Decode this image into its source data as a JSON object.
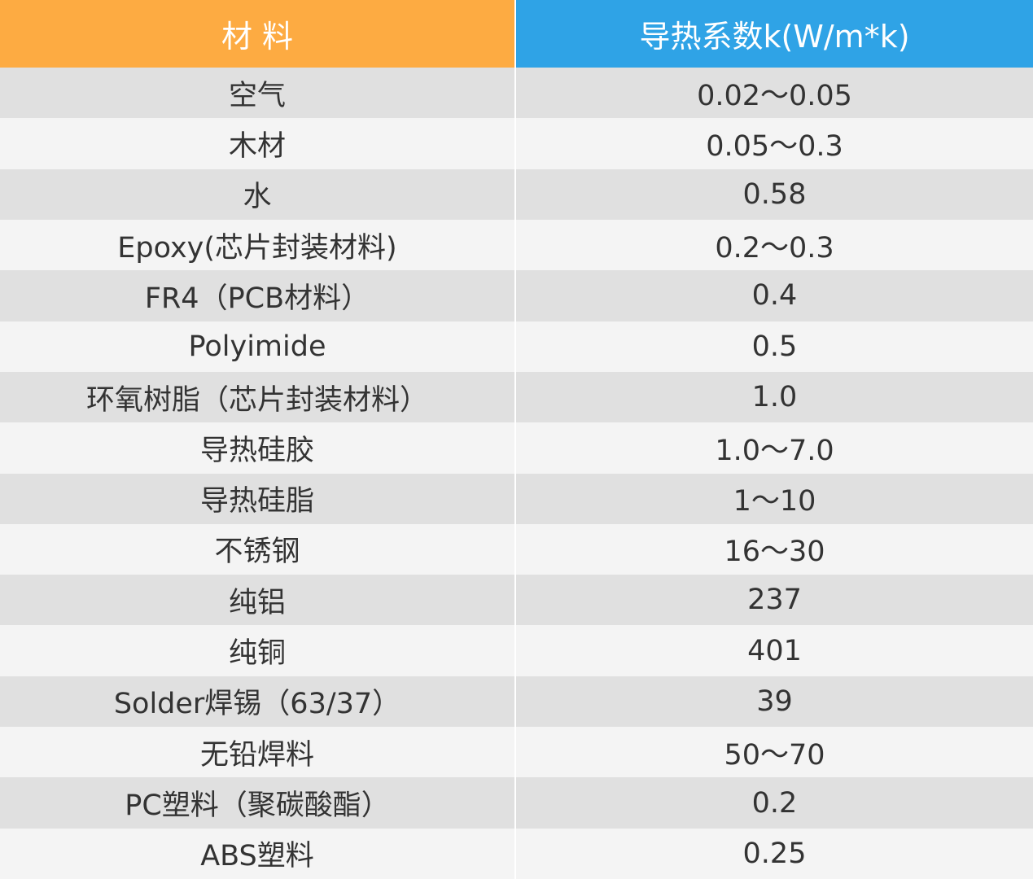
{
  "table": {
    "header": [
      "材 料",
      "导热系数k(W/m*k)"
    ],
    "rows": [
      [
        "空气",
        "0.02～0.05"
      ],
      [
        "木材",
        "0.05～0.3"
      ],
      [
        "水",
        "0.58"
      ],
      [
        "Epoxy(芯片封装材料)",
        "0.2～0.3"
      ],
      [
        "FR4（PCB材料）",
        "0.4"
      ],
      [
        "Polyimide",
        "0.5"
      ],
      [
        "环氧树脂（芯片封装材料）",
        "1.0"
      ],
      [
        "导热硅胶",
        "1.0～7.0"
      ],
      [
        "导热硅脂",
        "1～10"
      ],
      [
        "不锈钢",
        "16～30"
      ],
      [
        "纯铝",
        "237"
      ],
      [
        "纯铜",
        "401"
      ],
      [
        "Solder焊锡（63/37）",
        "39"
      ],
      [
        "无铅焊料",
        "50～70"
      ],
      [
        "PC塑料（聚碳酸酯）",
        "0.2"
      ],
      [
        "ABS塑料",
        "0.25"
      ]
    ]
  }
}
